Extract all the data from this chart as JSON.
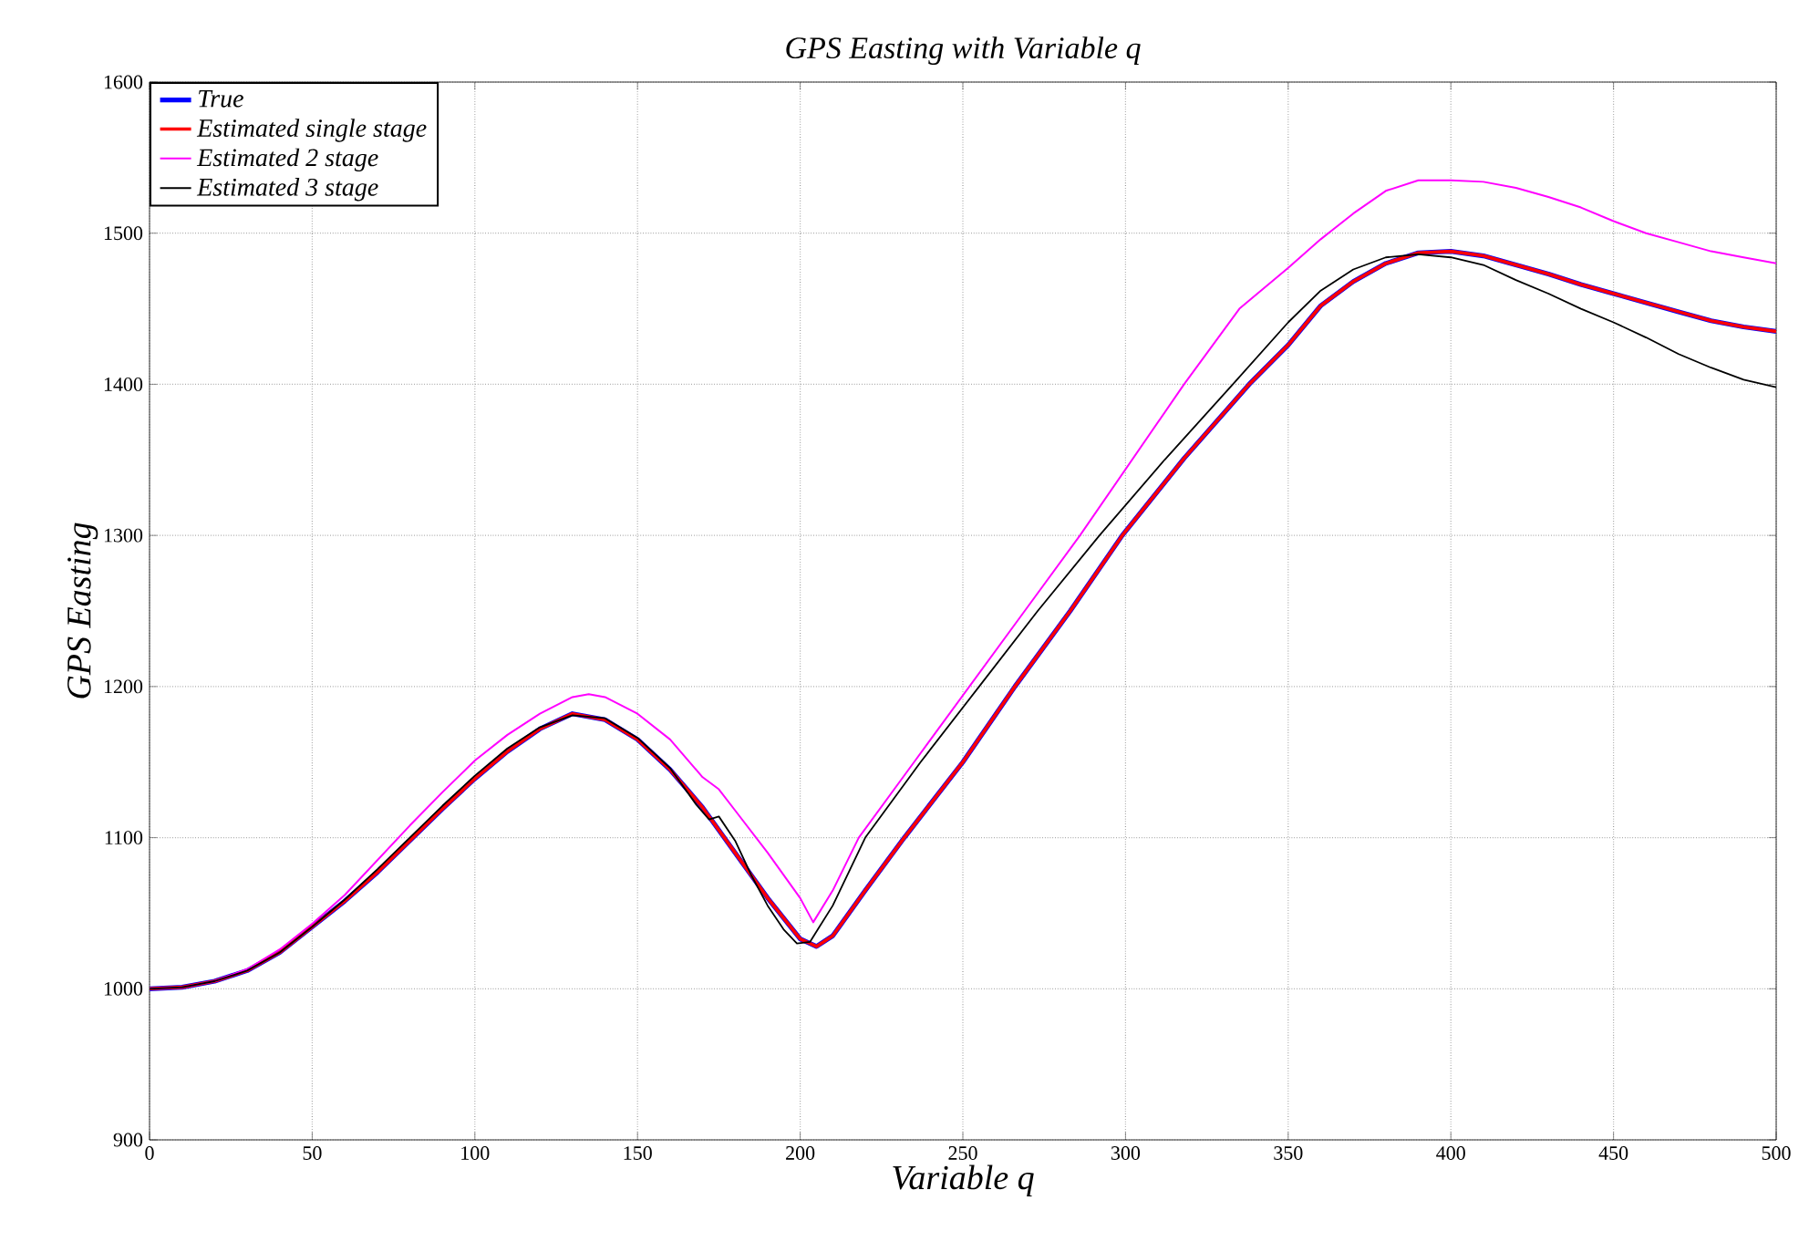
{
  "chart_data": {
    "type": "line",
    "title": "GPS Easting with Variable q",
    "xlabel": "Variable q",
    "ylabel": "GPS Easting",
    "xlim": [
      0,
      500
    ],
    "ylim": [
      900,
      1600
    ],
    "xticks": [
      0,
      50,
      100,
      150,
      200,
      250,
      300,
      350,
      400,
      450,
      500
    ],
    "yticks": [
      900,
      1000,
      1100,
      1200,
      1300,
      1400,
      1500,
      1600
    ],
    "grid": true,
    "legend": "top left",
    "marker": "none",
    "line_style": "solid",
    "series": [
      {
        "name": "True",
        "color": "#0000ff",
        "x": [
          0,
          10,
          20,
          30,
          40,
          50,
          60,
          70,
          80,
          90,
          100,
          110,
          120,
          130,
          140,
          150,
          160,
          170,
          180,
          190,
          200,
          205,
          210,
          220,
          232,
          250,
          266,
          283,
          299,
          318,
          338,
          350,
          360,
          370,
          380,
          390,
          400,
          410,
          420,
          430,
          440,
          450,
          460,
          470,
          480,
          490,
          500
        ],
        "values": [
          1000,
          1001,
          1005,
          1012,
          1024,
          1041,
          1058,
          1077,
          1098,
          1119,
          1139,
          1157,
          1172,
          1182,
          1178,
          1165,
          1145,
          1120,
          1090,
          1060,
          1033,
          1028,
          1035,
          1065,
          1100,
          1150,
          1200,
          1250,
          1300,
          1351,
          1400,
          1426,
          1452,
          1468,
          1480,
          1487,
          1488,
          1485,
          1479,
          1473,
          1466,
          1460,
          1454,
          1448,
          1442,
          1438,
          1435
        ]
      },
      {
        "name": "Estimated single stage",
        "color": "#ff0000",
        "x": [
          0,
          10,
          20,
          30,
          40,
          50,
          60,
          70,
          80,
          90,
          100,
          110,
          120,
          130,
          140,
          150,
          160,
          170,
          180,
          190,
          200,
          205,
          210,
          220,
          232,
          250,
          266,
          283,
          299,
          318,
          338,
          350,
          360,
          370,
          380,
          390,
          400,
          410,
          420,
          430,
          440,
          450,
          460,
          470,
          480,
          490,
          500
        ],
        "values": [
          1000,
          1001,
          1005,
          1012,
          1024,
          1041,
          1058,
          1077,
          1098,
          1119,
          1139,
          1157,
          1172,
          1182,
          1178,
          1165,
          1145,
          1120,
          1090,
          1060,
          1033,
          1028,
          1035,
          1065,
          1100,
          1150,
          1200,
          1250,
          1300,
          1351,
          1400,
          1426,
          1452,
          1468,
          1480,
          1487,
          1488,
          1485,
          1479,
          1473,
          1466,
          1460,
          1454,
          1448,
          1442,
          1438,
          1435
        ]
      },
      {
        "name": "Estimated 2 stage",
        "color": "#ff00ff",
        "x": [
          0,
          10,
          20,
          30,
          40,
          50,
          60,
          70,
          80,
          90,
          100,
          110,
          120,
          130,
          135,
          140,
          150,
          160,
          170,
          175,
          180,
          190,
          200,
          204,
          210,
          218,
          235,
          252,
          269,
          286,
          302,
          318,
          335,
          350,
          360,
          370,
          380,
          390,
          400,
          410,
          420,
          430,
          440,
          450,
          460,
          470,
          480,
          490,
          500
        ],
        "values": [
          1000,
          1001,
          1005,
          1013,
          1026,
          1043,
          1062,
          1085,
          1108,
          1130,
          1151,
          1168,
          1182,
          1193,
          1195,
          1193,
          1182,
          1165,
          1140,
          1132,
          1118,
          1090,
          1060,
          1044,
          1065,
          1100,
          1150,
          1200,
          1250,
          1300,
          1350,
          1400,
          1450,
          1477,
          1496,
          1513,
          1528,
          1535,
          1535,
          1534,
          1530,
          1524,
          1517,
          1508,
          1500,
          1494,
          1488,
          1484,
          1480
        ]
      },
      {
        "name": "Estimated 3 stage",
        "color": "#000000",
        "x": [
          0,
          10,
          20,
          30,
          40,
          50,
          60,
          70,
          80,
          90,
          100,
          110,
          120,
          130,
          140,
          150,
          160,
          168,
          172,
          175,
          180,
          185,
          190,
          195,
          199,
          203,
          210,
          220,
          237,
          255,
          273,
          292,
          312,
          333,
          350,
          360,
          370,
          380,
          390,
          400,
          410,
          420,
          430,
          440,
          450,
          460,
          470,
          480,
          490,
          500
        ],
        "values": [
          1000,
          1001,
          1005,
          1012,
          1024,
          1041,
          1059,
          1079,
          1100,
          1121,
          1141,
          1159,
          1173,
          1181,
          1179,
          1166,
          1146,
          1122,
          1112,
          1114,
          1098,
          1075,
          1055,
          1039,
          1030,
          1031,
          1055,
          1100,
          1150,
          1200,
          1250,
          1300,
          1350,
          1400,
          1441,
          1462,
          1476,
          1484,
          1486,
          1484,
          1479,
          1469,
          1460,
          1450,
          1441,
          1431,
          1420,
          1411,
          1403,
          1398
        ]
      }
    ]
  }
}
